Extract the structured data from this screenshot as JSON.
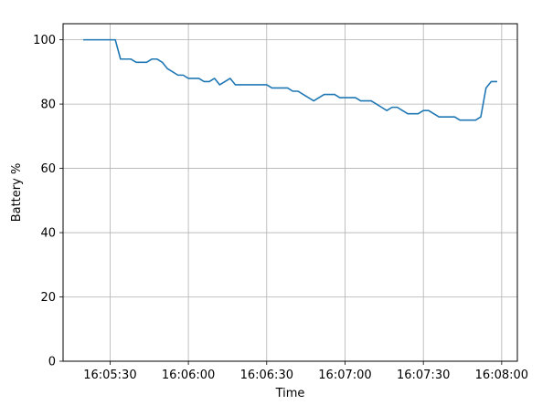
{
  "chart_data": {
    "type": "line",
    "title": "",
    "xlabel": "Time",
    "ylabel": "Battery %",
    "x_tick_labels": [
      "16:05:30",
      "16:06:00",
      "16:06:30",
      "16:07:00",
      "16:07:30",
      "16:08:00"
    ],
    "y_tick_labels": [
      "0",
      "20",
      "40",
      "60",
      "80",
      "100"
    ],
    "xlim": [
      "16:05:12",
      "16:08:06"
    ],
    "ylim": [
      0,
      105
    ],
    "grid": true,
    "legend": "none",
    "line_color": "#1f77b4",
    "series": [
      {
        "x": [
          "16:05:20",
          "16:05:22",
          "16:05:24",
          "16:05:26",
          "16:05:28",
          "16:05:30",
          "16:05:32",
          "16:05:34",
          "16:05:36",
          "16:05:38",
          "16:05:40",
          "16:05:42",
          "16:05:44",
          "16:05:46",
          "16:05:48",
          "16:05:50",
          "16:05:52",
          "16:05:54",
          "16:05:56",
          "16:05:58",
          "16:06:00",
          "16:06:02",
          "16:06:04",
          "16:06:06",
          "16:06:08",
          "16:06:10",
          "16:06:12",
          "16:06:14",
          "16:06:16",
          "16:06:18",
          "16:06:20",
          "16:06:22",
          "16:06:24",
          "16:06:26",
          "16:06:28",
          "16:06:30",
          "16:06:32",
          "16:06:34",
          "16:06:36",
          "16:06:38",
          "16:06:40",
          "16:06:42",
          "16:06:44",
          "16:06:46",
          "16:06:48",
          "16:06:50",
          "16:06:52",
          "16:06:54",
          "16:06:56",
          "16:06:58",
          "16:07:00",
          "16:07:02",
          "16:07:04",
          "16:07:06",
          "16:07:08",
          "16:07:10",
          "16:07:12",
          "16:07:14",
          "16:07:16",
          "16:07:18",
          "16:07:20",
          "16:07:22",
          "16:07:24",
          "16:07:26",
          "16:07:28",
          "16:07:30",
          "16:07:32",
          "16:07:34",
          "16:07:36",
          "16:07:38",
          "16:07:40",
          "16:07:42",
          "16:07:44",
          "16:07:46",
          "16:07:48",
          "16:07:50",
          "16:07:52",
          "16:07:54",
          "16:07:56",
          "16:07:58"
        ],
        "values": [
          100,
          100,
          100,
          100,
          100,
          100,
          100,
          94,
          94,
          94,
          93,
          93,
          93,
          94,
          94,
          93,
          91,
          90,
          89,
          89,
          88,
          88,
          88,
          87,
          87,
          88,
          86,
          87,
          88,
          86,
          86,
          86,
          86,
          86,
          86,
          86,
          85,
          85,
          85,
          85,
          84,
          84,
          83,
          82,
          81,
          82,
          83,
          83,
          83,
          82,
          82,
          82,
          82,
          81,
          81,
          81,
          80,
          79,
          78,
          79,
          79,
          78,
          77,
          77,
          77,
          78,
          78,
          77,
          76,
          76,
          76,
          76,
          75,
          75,
          75,
          75,
          76,
          85,
          87,
          87
        ]
      }
    ]
  }
}
